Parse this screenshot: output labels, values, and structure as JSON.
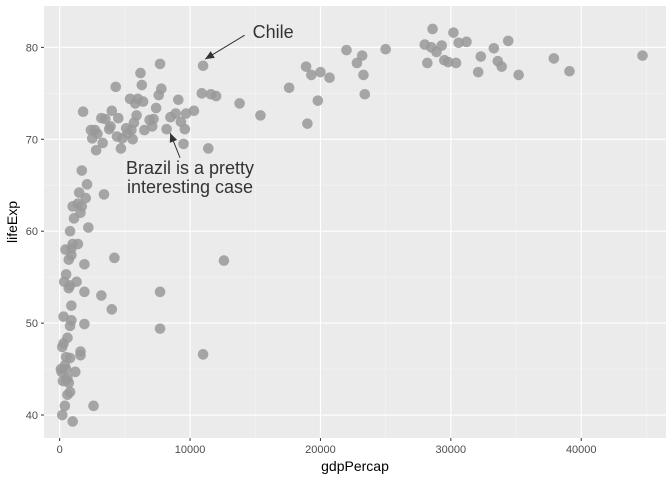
{
  "chart_data": {
    "type": "scatter",
    "xlabel": "gdpPercap",
    "ylabel": "lifeExp",
    "xlim": [
      -1200,
      46500
    ],
    "ylim": [
      37.5,
      84.5
    ],
    "x_ticks": [
      0,
      10000,
      20000,
      30000,
      40000
    ],
    "y_ticks": [
      40,
      50,
      60,
      70,
      80
    ],
    "x_tick_labels": [
      "0",
      "10000",
      "20000",
      "30000",
      "40000"
    ],
    "y_tick_labels": [
      "40",
      "50",
      "60",
      "70",
      "80"
    ],
    "grid": true,
    "background": "#ebebeb",
    "point_color": "#999999",
    "annotations": [
      {
        "text": "Chile",
        "point": [
          11000,
          78.5
        ],
        "label": [
          14800,
          81.0
        ]
      },
      {
        "text": "Brazil is a pretty\ninteresting case",
        "point": [
          8400,
          71.0
        ],
        "label": [
          10000,
          64.5
        ]
      }
    ],
    "points": [
      [
        44700,
        79.1
      ],
      [
        39100,
        77.4
      ],
      [
        37900,
        78.8
      ],
      [
        35200,
        77.0
      ],
      [
        34400,
        80.7
      ],
      [
        33900,
        77.9
      ],
      [
        33600,
        78.5
      ],
      [
        33300,
        79.9
      ],
      [
        32300,
        79.0
      ],
      [
        32100,
        77.3
      ],
      [
        31200,
        80.6
      ],
      [
        30600,
        80.5
      ],
      [
        30400,
        78.3
      ],
      [
        30200,
        81.6
      ],
      [
        29800,
        78.4
      ],
      [
        29500,
        78.6
      ],
      [
        29300,
        80.2
      ],
      [
        28900,
        79.5
      ],
      [
        28600,
        82.0
      ],
      [
        28500,
        80.0
      ],
      [
        28200,
        78.3
      ],
      [
        28000,
        80.3
      ],
      [
        25000,
        79.8
      ],
      [
        23400,
        74.9
      ],
      [
        23300,
        77.0
      ],
      [
        23200,
        79.1
      ],
      [
        22800,
        78.3
      ],
      [
        22000,
        79.7
      ],
      [
        20700,
        76.7
      ],
      [
        20000,
        77.3
      ],
      [
        19800,
        74.2
      ],
      [
        19300,
        77.0
      ],
      [
        19000,
        71.7
      ],
      [
        18900,
        77.9
      ],
      [
        17600,
        75.6
      ],
      [
        15400,
        72.6
      ],
      [
        13800,
        73.9
      ],
      [
        12600,
        56.8
      ],
      [
        12000,
        74.7
      ],
      [
        11600,
        74.9
      ],
      [
        11400,
        69.0
      ],
      [
        11000,
        78.0
      ],
      [
        10900,
        75.0
      ],
      [
        11000,
        46.6
      ],
      [
        10300,
        73.1
      ],
      [
        9700,
        72.8
      ],
      [
        9600,
        71.1
      ],
      [
        9500,
        69.5
      ],
      [
        9300,
        71.9
      ],
      [
        9100,
        74.3
      ],
      [
        8900,
        72.8
      ],
      [
        8500,
        72.4
      ],
      [
        8200,
        71.1
      ],
      [
        7700,
        78.2
      ],
      [
        7800,
        75.5
      ],
      [
        7600,
        74.8
      ],
      [
        7400,
        73.4
      ],
      [
        7200,
        72.2
      ],
      [
        7100,
        71.4
      ],
      [
        7700,
        53.4
      ],
      [
        7700,
        49.4
      ],
      [
        6900,
        72.1
      ],
      [
        6500,
        71.0
      ],
      [
        6400,
        74.1
      ],
      [
        6300,
        75.9
      ],
      [
        6200,
        77.2
      ],
      [
        6000,
        74.4
      ],
      [
        5900,
        72.6
      ],
      [
        5800,
        73.9
      ],
      [
        5700,
        71.8
      ],
      [
        5600,
        70.0
      ],
      [
        5500,
        71.0
      ],
      [
        5400,
        74.4
      ],
      [
        5200,
        70.6
      ],
      [
        5100,
        71.2
      ],
      [
        4800,
        70.1
      ],
      [
        4700,
        69.0
      ],
      [
        4500,
        72.3
      ],
      [
        4400,
        70.3
      ],
      [
        4300,
        75.7
      ],
      [
        4200,
        57.1
      ],
      [
        4000,
        73.1
      ],
      [
        4000,
        51.5
      ],
      [
        3900,
        71.4
      ],
      [
        3800,
        71.1
      ],
      [
        3500,
        72.2
      ],
      [
        3400,
        64.0
      ],
      [
        3300,
        69.6
      ],
      [
        3200,
        72.3
      ],
      [
        3200,
        53.0
      ],
      [
        2900,
        70.6
      ],
      [
        2800,
        68.8
      ],
      [
        2700,
        71.0
      ],
      [
        2600,
        41.0
      ],
      [
        2500,
        70.1
      ],
      [
        2400,
        71.0
      ],
      [
        2200,
        60.4
      ],
      [
        2100,
        65.1
      ],
      [
        2000,
        63.6
      ],
      [
        1900,
        56.4
      ],
      [
        1900,
        53.4
      ],
      [
        1900,
        49.9
      ],
      [
        1800,
        73.0
      ],
      [
        1700,
        66.6
      ],
      [
        1700,
        62.7
      ],
      [
        1600,
        62.0
      ],
      [
        1600,
        46.9
      ],
      [
        1600,
        46.5
      ],
      [
        1500,
        64.2
      ],
      [
        1400,
        63.0
      ],
      [
        1400,
        58.6
      ],
      [
        1300,
        54.5
      ],
      [
        1200,
        44.7
      ],
      [
        1100,
        61.4
      ],
      [
        1000,
        62.7
      ],
      [
        1000,
        58.6
      ],
      [
        900,
        58.1
      ],
      [
        900,
        57.4
      ],
      [
        900,
        51.9
      ],
      [
        900,
        50.3
      ],
      [
        800,
        60.0
      ],
      [
        800,
        54.1
      ],
      [
        800,
        49.7
      ],
      [
        800,
        46.2
      ],
      [
        800,
        42.5
      ],
      [
        700,
        56.9
      ],
      [
        700,
        53.8
      ],
      [
        700,
        43.5
      ],
      [
        600,
        48.4
      ],
      [
        600,
        44.0
      ],
      [
        600,
        42.2
      ],
      [
        500,
        55.3
      ],
      [
        500,
        46.3
      ],
      [
        500,
        45.0
      ],
      [
        500,
        43.8
      ],
      [
        450,
        58.0
      ],
      [
        400,
        45.4
      ],
      [
        400,
        41.0
      ],
      [
        350,
        54.5
      ],
      [
        300,
        50.7
      ],
      [
        300,
        47.8
      ],
      [
        250,
        43.7
      ],
      [
        200,
        47.4
      ],
      [
        200,
        40.0
      ],
      [
        150,
        44.7
      ],
      [
        100,
        45.0
      ],
      [
        1000,
        39.3
      ]
    ]
  }
}
